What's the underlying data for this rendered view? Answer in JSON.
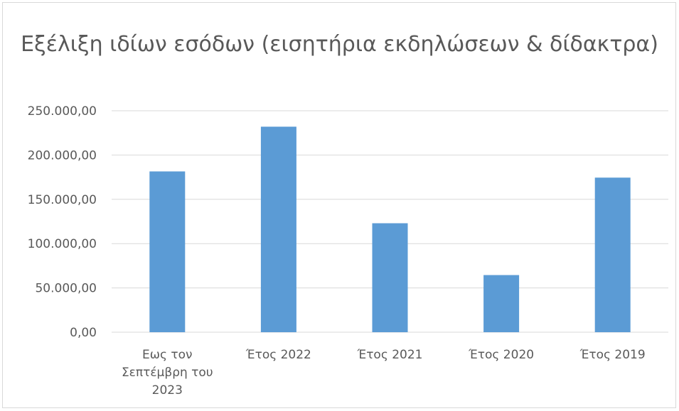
{
  "chart_data": {
    "type": "bar",
    "title": "Εξέλιξη ιδίων εσόδων (εισητήρια εκδηλώσεων & δίδακτρα)",
    "categories": [
      [
        "Εως τον",
        "Σεπτέμβρη του",
        "2023"
      ],
      [
        "Έτος 2022"
      ],
      [
        "Έτος 2021"
      ],
      [
        "Έτος 2020"
      ],
      [
        "Έτος 2019"
      ]
    ],
    "values": [
      181500,
      232000,
      123000,
      64500,
      174500
    ],
    "ylim": [
      0,
      250000
    ],
    "yticks": [
      "0,00",
      "50.000,00",
      "100.000,00",
      "150.000,00",
      "200.000,00",
      "250.000,00"
    ],
    "grid": true,
    "bar_color": "#5b9bd5",
    "grid_color": "#d9d9d9"
  }
}
